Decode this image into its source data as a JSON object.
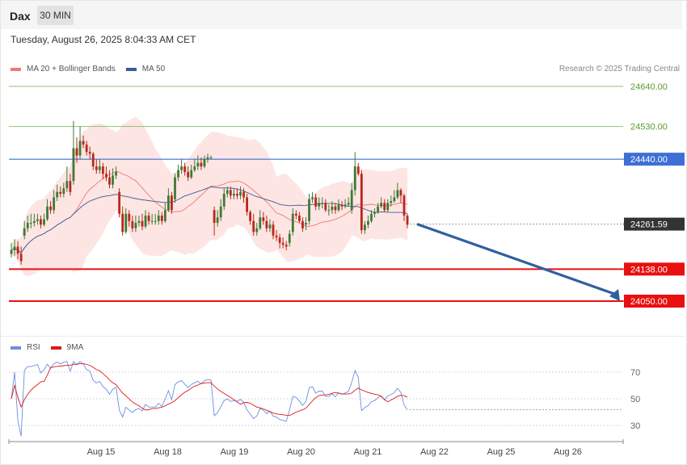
{
  "header": {
    "symbol": "Dax",
    "timeframe_button": "30 MIN",
    "datetime": "Tuesday, August 26, 2025 8:04:33 AM CET"
  },
  "legend": {
    "ma20_label": "MA 20 + Bollinger Bands",
    "ma50_label": "MA 50",
    "credit": "Research © 2025 Trading Central"
  },
  "rsi_legend": {
    "rsi_label": "RSI",
    "ma_label": "9MA"
  },
  "colors": {
    "ma20": "#f07878",
    "ma50": "#3a5a9a",
    "band": "#fde0de",
    "bull": "#3d7a35",
    "bear": "#b8281c",
    "resistance": "#90c070",
    "pivot": "#3d6fd4",
    "support": "#e81010",
    "rsi": "#6b8fe0",
    "rsi_ma": "#e01818",
    "last_price": "#333333",
    "arrow": "#2f5fa0"
  },
  "chart_data": [
    {
      "type": "candlestick",
      "title": "",
      "x_ticks": [
        "Aug 15",
        "Aug 18",
        "Aug 19",
        "Aug 20",
        "Aug 21",
        "Aug 22",
        "Aug 25",
        "Aug 26"
      ],
      "levels": [
        {
          "name": "resistance",
          "value": 24640.0,
          "label": "24640.00",
          "style": "resistance"
        },
        {
          "name": "resistance",
          "value": 24530.0,
          "label": "24530.00",
          "style": "resistance"
        },
        {
          "name": "pivot",
          "value": 24440.0,
          "label": "24440.00",
          "style": "pivot"
        },
        {
          "name": "last",
          "value": 24261.59,
          "label": "24261.59",
          "style": "last"
        },
        {
          "name": "support",
          "value": 24138.0,
          "label": "24138.00",
          "style": "support"
        },
        {
          "name": "support",
          "value": 24050.0,
          "label": "24050.00",
          "style": "support"
        }
      ],
      "forecast": {
        "from": 24261.59,
        "to": 24050.0,
        "direction": "down"
      },
      "close": [
        24190,
        24200,
        24180,
        24160,
        24250,
        24265,
        24265,
        24270,
        24275,
        24260,
        24275,
        24310,
        24300,
        24335,
        24350,
        24345,
        24360,
        24380,
        24350,
        24470,
        24450,
        24490,
        24480,
        24460,
        24455,
        24420,
        24410,
        24420,
        24400,
        24390,
        24370,
        24395,
        24405,
        24290,
        24240,
        24290,
        24270,
        24250,
        24265,
        24270,
        24255,
        24285,
        24270,
        24270,
        24270,
        24285,
        24270,
        24300,
        24340,
        24300,
        24390,
        24410,
        24420,
        24405,
        24390,
        24410,
        24420,
        24430,
        24420,
        24440,
        24445,
        24445,
        24265,
        24280,
        24310,
        24345,
        24355,
        24340,
        24345,
        24340,
        24350,
        24335,
        24295,
        24270,
        24240,
        24250,
        24280,
        24270,
        24250,
        24260,
        24230,
        24225,
        24210,
        24205,
        24200,
        24235,
        24290,
        24285,
        24270,
        24250,
        24265,
        24330,
        24335,
        24310,
        24320,
        24320,
        24300,
        24300,
        24310,
        24300,
        24315,
        24310,
        24315,
        24320,
        24355,
        24420,
        24400,
        24245,
        24260,
        24270,
        24290,
        24295,
        24310,
        24320,
        24300,
        24320,
        24325,
        24335,
        24355,
        24340,
        24285,
        24260
      ],
      "open": [
        24180,
        24190,
        24200,
        24180,
        24230,
        24250,
        24265,
        24265,
        24270,
        24275,
        24260,
        24275,
        24310,
        24300,
        24335,
        24350,
        24345,
        24360,
        24380,
        24380,
        24470,
        24450,
        24490,
        24480,
        24460,
        24455,
        24420,
        24410,
        24420,
        24400,
        24390,
        24370,
        24395,
        24350,
        24290,
        24240,
        24290,
        24270,
        24250,
        24265,
        24270,
        24255,
        24285,
        24270,
        24270,
        24270,
        24285,
        24270,
        24300,
        24340,
        24330,
        24390,
        24410,
        24420,
        24405,
        24390,
        24410,
        24420,
        24430,
        24420,
        24440,
        24445,
        24300,
        24265,
        24280,
        24310,
        24345,
        24355,
        24340,
        24345,
        24340,
        24350,
        24335,
        24295,
        24270,
        24240,
        24250,
        24280,
        24270,
        24250,
        24260,
        24230,
        24225,
        24210,
        24205,
        24210,
        24240,
        24290,
        24285,
        24270,
        24260,
        24270,
        24330,
        24335,
        24310,
        24320,
        24320,
        24300,
        24300,
        24310,
        24300,
        24315,
        24310,
        24315,
        24300,
        24355,
        24420,
        24400,
        24245,
        24260,
        24270,
        24290,
        24295,
        24310,
        24320,
        24300,
        24320,
        24325,
        24335,
        24355,
        24340,
        24285
      ],
      "high": [
        24210,
        24220,
        24215,
        24200,
        24270,
        24285,
        24290,
        24290,
        24290,
        24285,
        24290,
        24330,
        24325,
        24355,
        24370,
        24365,
        24375,
        24420,
        24400,
        24545,
        24500,
        24530,
        24505,
        24490,
        24475,
        24460,
        24440,
        24440,
        24430,
        24420,
        24410,
        24415,
        24420,
        24360,
        24310,
        24305,
        24300,
        24285,
        24285,
        24285,
        24290,
        24300,
        24295,
        24290,
        24290,
        24300,
        24295,
        24320,
        24360,
        24350,
        24400,
        24425,
        24440,
        24430,
        24420,
        24425,
        24440,
        24450,
        24445,
        24450,
        24455,
        24450,
        24310,
        24300,
        24330,
        24360,
        24365,
        24365,
        24360,
        24360,
        24365,
        24360,
        24345,
        24300,
        24290,
        24265,
        24300,
        24295,
        24285,
        24275,
        24270,
        24245,
        24235,
        24225,
        24215,
        24245,
        24305,
        24300,
        24295,
        24280,
        24280,
        24345,
        24350,
        24345,
        24335,
        24335,
        24330,
        24315,
        24325,
        24320,
        24330,
        24325,
        24330,
        24335,
        24375,
        24460,
        24430,
        24410,
        24270,
        24285,
        24300,
        24305,
        24320,
        24335,
        24330,
        24330,
        24340,
        24355,
        24375,
        24360,
        24345,
        24290
      ],
      "low": [
        24170,
        24175,
        24165,
        24150,
        24220,
        24240,
        24250,
        24255,
        24260,
        24250,
        24255,
        24270,
        24290,
        24290,
        24325,
        24335,
        24335,
        24350,
        24340,
        24370,
        24430,
        24440,
        24470,
        24450,
        24440,
        24410,
        24400,
        24400,
        24385,
        24380,
        24360,
        24360,
        24385,
        24280,
        24230,
        24235,
        24255,
        24240,
        24240,
        24255,
        24245,
        24250,
        24260,
        24260,
        24260,
        24260,
        24260,
        24265,
        24295,
        24290,
        24320,
        24380,
        24400,
        24395,
        24380,
        24385,
        24405,
        24410,
        24410,
        24415,
        24430,
        24440,
        24230,
        24255,
        24270,
        24300,
        24335,
        24330,
        24330,
        24330,
        24330,
        24320,
        24285,
        24260,
        24230,
        24230,
        24245,
        24260,
        24240,
        24240,
        24220,
        24215,
        24195,
        24195,
        24190,
        24200,
        24230,
        24275,
        24265,
        24240,
        24245,
        24260,
        24320,
        24300,
        24300,
        24305,
        24295,
        24285,
        24290,
        24290,
        24295,
        24300,
        24305,
        24310,
        24290,
        24340,
        24395,
        24235,
        24235,
        24250,
        24265,
        24280,
        24290,
        24305,
        24295,
        24295,
        24310,
        24320,
        24330,
        24320,
        24270,
        24250
      ]
    },
    {
      "type": "line",
      "title": "",
      "series": [
        {
          "name": "RSI"
        },
        {
          "name": "9MA"
        }
      ],
      "y_ticks": [
        70,
        50,
        30
      ],
      "ylim": [
        20,
        80
      ],
      "reference_lines": [
        70,
        50,
        30
      ]
    }
  ]
}
